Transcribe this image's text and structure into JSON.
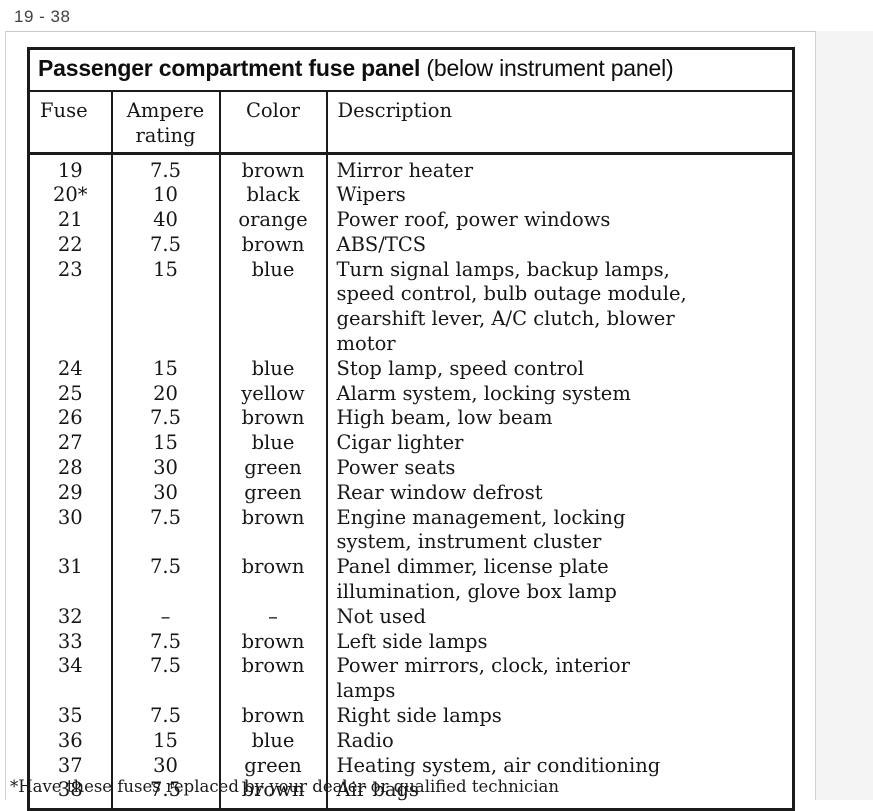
{
  "page_label": "19 - 38",
  "table": {
    "title": "Passenger compartment fuse panel",
    "title_suffix": "(below instrument panel)",
    "columns": [
      "Fuse",
      "Ampere rating",
      "Color",
      "Description"
    ],
    "rows": [
      {
        "fuse": "19",
        "ampere": "7.5",
        "color": "brown",
        "description": "Mirror heater"
      },
      {
        "fuse": "20*",
        "ampere": "10",
        "color": "black",
        "description": "Wipers"
      },
      {
        "fuse": "21",
        "ampere": "40",
        "color": "orange",
        "description": "Power roof, power windows"
      },
      {
        "fuse": "22",
        "ampere": "7.5",
        "color": "brown",
        "description": "ABS/TCS"
      },
      {
        "fuse": "23",
        "ampere": "15",
        "color": "blue",
        "description": "Turn signal lamps, backup lamps, speed control, bulb outage module, gearshift lever, A/C clutch, blower motor"
      },
      {
        "fuse": "24",
        "ampere": "15",
        "color": "blue",
        "description": "Stop lamp, speed control"
      },
      {
        "fuse": "25",
        "ampere": "20",
        "color": "yellow",
        "description": "Alarm system, locking system"
      },
      {
        "fuse": "26",
        "ampere": "7.5",
        "color": "brown",
        "description": "High beam, low beam"
      },
      {
        "fuse": "27",
        "ampere": "15",
        "color": "blue",
        "description": "Cigar lighter"
      },
      {
        "fuse": "28",
        "ampere": "30",
        "color": "green",
        "description": "Power seats"
      },
      {
        "fuse": "29",
        "ampere": "30",
        "color": "green",
        "description": "Rear window defrost"
      },
      {
        "fuse": "30",
        "ampere": "7.5",
        "color": "brown",
        "description": "Engine management, locking system, instrument cluster"
      },
      {
        "fuse": "31",
        "ampere": "7.5",
        "color": "brown",
        "description": "Panel dimmer, license plate illumination, glove box lamp"
      },
      {
        "fuse": "32",
        "ampere": "–",
        "color": "–",
        "description": "Not used"
      },
      {
        "fuse": "33",
        "ampere": "7.5",
        "color": "brown",
        "description": "Left side lamps"
      },
      {
        "fuse": "34",
        "ampere": "7.5",
        "color": "brown",
        "description": "Power mirrors, clock, interior lamps"
      },
      {
        "fuse": "35",
        "ampere": "7.5",
        "color": "brown",
        "description": "Right side lamps"
      },
      {
        "fuse": "36",
        "ampere": "15",
        "color": "blue",
        "description": "Radio"
      },
      {
        "fuse": "37",
        "ampere": "30",
        "color": "green",
        "description": "Heating system, air conditioning"
      },
      {
        "fuse": "38",
        "ampere": "7.5",
        "color": "brown",
        "description": "Air bags"
      }
    ]
  },
  "footnote": "*Have these fuses replaced by your dealer or qualified technician",
  "colors": {
    "text": "#161616",
    "border": "#1b1b1b",
    "page_edge": "#cccccc",
    "gutter": "#f4f4f4",
    "page_label": "#414141"
  }
}
